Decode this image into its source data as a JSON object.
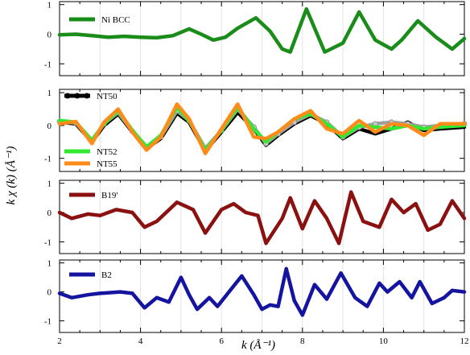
{
  "figure": {
    "ylabel": "k χ (k) (Å⁻¹)",
    "xlabel": "k (Å⁻¹)"
  },
  "chart_data": [
    {
      "type": "line",
      "panel": 1,
      "xlim": [
        2,
        12
      ],
      "ylim": [
        -1.4,
        1.1
      ],
      "yticks": [
        1,
        0,
        -1
      ],
      "xticks": [
        2,
        4,
        6,
        8,
        10,
        12
      ],
      "grid": "vertical",
      "legend": "top-left",
      "series": [
        {
          "name": "Ni BCC",
          "color": "#1a8c1a",
          "points": [
            [
              2.0,
              -0.02
            ],
            [
              2.4,
              0.0
            ],
            [
              2.8,
              -0.05
            ],
            [
              3.2,
              -0.1
            ],
            [
              3.6,
              -0.07
            ],
            [
              4.0,
              -0.1
            ],
            [
              4.4,
              -0.12
            ],
            [
              4.8,
              -0.05
            ],
            [
              5.2,
              0.18
            ],
            [
              5.5,
              0.0
            ],
            [
              5.8,
              -0.2
            ],
            [
              6.1,
              -0.1
            ],
            [
              6.4,
              0.2
            ],
            [
              6.85,
              0.55
            ],
            [
              7.2,
              0.1
            ],
            [
              7.5,
              -0.5
            ],
            [
              7.7,
              -0.6
            ],
            [
              8.1,
              0.85
            ],
            [
              8.55,
              -0.6
            ],
            [
              9.0,
              -0.3
            ],
            [
              9.4,
              0.75
            ],
            [
              9.8,
              -0.2
            ],
            [
              10.2,
              -0.5
            ],
            [
              10.45,
              -0.2
            ],
            [
              10.85,
              0.45
            ],
            [
              11.3,
              -0.1
            ],
            [
              11.7,
              -0.5
            ],
            [
              12.0,
              -0.15
            ]
          ]
        }
      ]
    },
    {
      "type": "line",
      "panel": 2,
      "xlim": [
        2,
        12
      ],
      "ylim": [
        -1.4,
        1.1
      ],
      "yticks": [
        1,
        0,
        -1
      ],
      "xticks": [
        2,
        4,
        6,
        8,
        10,
        12
      ],
      "grid": "vertical",
      "legend": "left",
      "series": [
        {
          "name": "NT50",
          "color": "#000000",
          "points": [
            [
              2.0,
              0.1
            ],
            [
              2.4,
              0.05
            ],
            [
              2.8,
              -0.5
            ],
            [
              3.1,
              0.0
            ],
            [
              3.45,
              0.35
            ],
            [
              3.8,
              -0.2
            ],
            [
              4.15,
              -0.7
            ],
            [
              4.5,
              -0.4
            ],
            [
              4.9,
              0.38
            ],
            [
              5.2,
              0.1
            ],
            [
              5.6,
              -0.78
            ],
            [
              6.0,
              -0.2
            ],
            [
              6.4,
              0.4
            ],
            [
              6.8,
              -0.1
            ],
            [
              7.1,
              -0.6
            ],
            [
              7.4,
              -0.3
            ],
            [
              7.8,
              0.05
            ],
            [
              8.2,
              0.3
            ],
            [
              8.6,
              0.05
            ],
            [
              9.0,
              -0.4
            ],
            [
              9.4,
              -0.1
            ],
            [
              9.8,
              -0.25
            ],
            [
              10.2,
              -0.1
            ],
            [
              10.6,
              0.1
            ],
            [
              11.0,
              -0.15
            ],
            [
              11.4,
              -0.1
            ],
            [
              12.0,
              -0.05
            ]
          ]
        },
        {
          "name": "",
          "color": "#a0a0a0",
          "points": [
            [
              2.0,
              0.12
            ],
            [
              2.4,
              0.08
            ],
            [
              2.8,
              -0.45
            ],
            [
              3.1,
              0.05
            ],
            [
              3.45,
              0.4
            ],
            [
              3.8,
              -0.18
            ],
            [
              4.15,
              -0.65
            ],
            [
              4.5,
              -0.35
            ],
            [
              4.9,
              0.45
            ],
            [
              5.2,
              0.15
            ],
            [
              5.6,
              -0.7
            ],
            [
              6.0,
              -0.15
            ],
            [
              6.4,
              0.5
            ],
            [
              6.8,
              -0.05
            ],
            [
              7.1,
              -0.55
            ],
            [
              7.4,
              -0.25
            ],
            [
              7.8,
              0.1
            ],
            [
              8.2,
              0.35
            ],
            [
              8.6,
              0.1
            ],
            [
              9.0,
              -0.35
            ],
            [
              9.4,
              -0.05
            ],
            [
              9.8,
              0.05
            ],
            [
              10.2,
              0.1
            ],
            [
              10.6,
              0.05
            ],
            [
              11.0,
              -0.05
            ],
            [
              11.4,
              0.0
            ],
            [
              12.0,
              0.05
            ]
          ]
        },
        {
          "name": "NT52",
          "color": "#33e833",
          "points": [
            [
              2.0,
              0.15
            ],
            [
              2.4,
              0.1
            ],
            [
              2.8,
              -0.45
            ],
            [
              3.1,
              0.05
            ],
            [
              3.45,
              0.45
            ],
            [
              3.8,
              -0.15
            ],
            [
              4.15,
              -0.65
            ],
            [
              4.5,
              -0.3
            ],
            [
              4.9,
              0.55
            ],
            [
              5.2,
              0.15
            ],
            [
              5.6,
              -0.75
            ],
            [
              6.0,
              -0.15
            ],
            [
              6.4,
              0.55
            ],
            [
              6.8,
              -0.1
            ],
            [
              7.1,
              -0.5
            ],
            [
              7.4,
              -0.2
            ],
            [
              7.8,
              0.2
            ],
            [
              8.2,
              0.35
            ],
            [
              8.6,
              0.05
            ],
            [
              9.0,
              -0.35
            ],
            [
              9.4,
              0.0
            ],
            [
              9.8,
              -0.05
            ],
            [
              10.2,
              -0.1
            ],
            [
              10.6,
              0.0
            ],
            [
              11.0,
              -0.1
            ],
            [
              11.4,
              -0.05
            ],
            [
              12.0,
              0.0
            ]
          ]
        },
        {
          "name": "NT55",
          "color": "#ff8c1a",
          "points": [
            [
              2.0,
              0.05
            ],
            [
              2.4,
              0.12
            ],
            [
              2.8,
              -0.55
            ],
            [
              3.1,
              0.1
            ],
            [
              3.45,
              0.5
            ],
            [
              3.8,
              -0.2
            ],
            [
              4.15,
              -0.75
            ],
            [
              4.5,
              -0.35
            ],
            [
              4.9,
              0.65
            ],
            [
              5.2,
              0.2
            ],
            [
              5.6,
              -0.85
            ],
            [
              6.0,
              -0.1
            ],
            [
              6.4,
              0.65
            ],
            [
              6.8,
              -0.35
            ],
            [
              7.1,
              -0.4
            ],
            [
              7.4,
              -0.2
            ],
            [
              7.8,
              0.2
            ],
            [
              8.2,
              0.45
            ],
            [
              8.6,
              -0.1
            ],
            [
              9.0,
              -0.25
            ],
            [
              9.4,
              0.15
            ],
            [
              9.8,
              -0.2
            ],
            [
              10.2,
              0.05
            ],
            [
              10.6,
              0.0
            ],
            [
              11.0,
              -0.3
            ],
            [
              11.4,
              0.05
            ],
            [
              12.0,
              0.05
            ]
          ]
        }
      ]
    },
    {
      "type": "line",
      "panel": 3,
      "xlim": [
        2,
        12
      ],
      "ylim": [
        -1.4,
        1.1
      ],
      "yticks": [
        1,
        0,
        -1
      ],
      "xticks": [
        2,
        4,
        6,
        8,
        10,
        12
      ],
      "grid": "vertical",
      "legend": "top-left",
      "series": [
        {
          "name": "B19'",
          "color": "#8b1010",
          "points": [
            [
              2.0,
              0.0
            ],
            [
              2.3,
              -0.2
            ],
            [
              2.7,
              -0.05
            ],
            [
              3.0,
              -0.1
            ],
            [
              3.4,
              0.1
            ],
            [
              3.8,
              0.0
            ],
            [
              4.1,
              -0.5
            ],
            [
              4.4,
              -0.3
            ],
            [
              4.9,
              0.35
            ],
            [
              5.3,
              0.1
            ],
            [
              5.6,
              -0.7
            ],
            [
              6.0,
              0.1
            ],
            [
              6.3,
              0.3
            ],
            [
              6.6,
              0.0
            ],
            [
              6.9,
              -0.1
            ],
            [
              7.1,
              -1.05
            ],
            [
              7.5,
              -0.2
            ],
            [
              7.7,
              0.5
            ],
            [
              8.0,
              -0.55
            ],
            [
              8.3,
              0.4
            ],
            [
              8.6,
              -0.2
            ],
            [
              8.9,
              -1.05
            ],
            [
              9.2,
              0.7
            ],
            [
              9.5,
              -0.3
            ],
            [
              9.9,
              -0.5
            ],
            [
              10.2,
              0.45
            ],
            [
              10.5,
              0.0
            ],
            [
              10.8,
              0.3
            ],
            [
              11.1,
              -0.6
            ],
            [
              11.4,
              -0.4
            ],
            [
              11.7,
              0.4
            ],
            [
              12.0,
              -0.2
            ]
          ]
        }
      ]
    },
    {
      "type": "line",
      "panel": 4,
      "xlim": [
        2,
        12
      ],
      "ylim": [
        -1.4,
        1.1
      ],
      "yticks": [
        1,
        0,
        -1
      ],
      "xticks": [
        2,
        4,
        6,
        8,
        10,
        12
      ],
      "grid": "vertical",
      "legend": "top-left",
      "series": [
        {
          "name": "B2",
          "color": "#1414a0",
          "points": [
            [
              2.0,
              -0.05
            ],
            [
              2.3,
              -0.2
            ],
            [
              2.7,
              -0.1
            ],
            [
              3.0,
              -0.05
            ],
            [
              3.5,
              0.0
            ],
            [
              3.8,
              -0.05
            ],
            [
              4.1,
              -0.55
            ],
            [
              4.4,
              -0.2
            ],
            [
              4.7,
              -0.35
            ],
            [
              5.0,
              0.5
            ],
            [
              5.2,
              -0.1
            ],
            [
              5.4,
              -0.6
            ],
            [
              5.7,
              -0.2
            ],
            [
              5.9,
              -0.5
            ],
            [
              6.3,
              0.2
            ],
            [
              6.5,
              0.55
            ],
            [
              6.8,
              -0.1
            ],
            [
              7.0,
              -0.6
            ],
            [
              7.2,
              -0.45
            ],
            [
              7.4,
              -0.5
            ],
            [
              7.6,
              0.8
            ],
            [
              7.8,
              -0.3
            ],
            [
              8.0,
              -0.8
            ],
            [
              8.3,
              0.25
            ],
            [
              8.6,
              -0.25
            ],
            [
              8.95,
              0.65
            ],
            [
              9.3,
              -0.2
            ],
            [
              9.6,
              -0.5
            ],
            [
              9.9,
              0.3
            ],
            [
              10.1,
              0.0
            ],
            [
              10.4,
              0.35
            ],
            [
              10.7,
              -0.2
            ],
            [
              10.9,
              0.35
            ],
            [
              11.2,
              -0.4
            ],
            [
              11.5,
              -0.2
            ],
            [
              11.7,
              0.05
            ],
            [
              12.0,
              0.0
            ]
          ]
        }
      ]
    }
  ]
}
